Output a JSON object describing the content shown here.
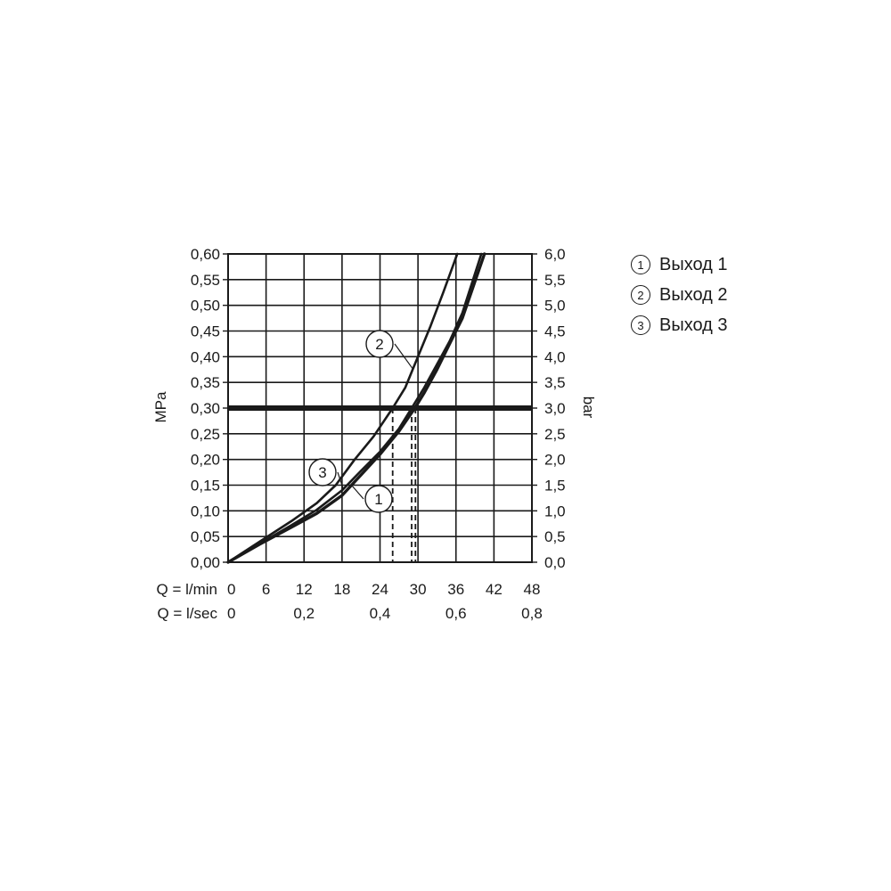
{
  "chart_data": {
    "type": "line",
    "y_left_label": "MPa",
    "y_right_label": "bar",
    "x_label_rows": [
      {
        "label": "Q = l/min",
        "ticks": [
          "0",
          "6",
          "12",
          "18",
          "24",
          "30",
          "36",
          "42",
          "48"
        ]
      },
      {
        "label": "Q = l/sec",
        "ticks": [
          "0",
          "0,2",
          "0,4",
          "0,6",
          "0,8"
        ]
      }
    ],
    "y_left_ticks": [
      "0,00",
      "0,05",
      "0,10",
      "0,15",
      "0,20",
      "0,25",
      "0,30",
      "0,35",
      "0,40",
      "0,45",
      "0,50",
      "0,55",
      "0,60"
    ],
    "y_right_ticks": [
      "0,0",
      "0,5",
      "1,0",
      "1,5",
      "2,0",
      "2,5",
      "3,0",
      "3,5",
      "4,0",
      "4,5",
      "5,0",
      "5,5",
      "6,0"
    ],
    "xlim": [
      0,
      48
    ],
    "ylim": [
      0,
      0.6
    ],
    "x_grid_step": 6,
    "y_grid_step": 0.05,
    "reference_line": {
      "y": 0.3
    },
    "series": [
      {
        "marker": "1",
        "name": "Выход 1",
        "x": [
          0,
          5,
          10,
          14,
          18,
          21,
          24,
          27,
          29.5,
          31,
          33,
          35,
          37,
          40.5
        ],
        "y": [
          0,
          0.035,
          0.068,
          0.095,
          0.13,
          0.17,
          0.21,
          0.255,
          0.3,
          0.33,
          0.375,
          0.425,
          0.475,
          0.6
        ]
      },
      {
        "marker": "2",
        "name": "Выход 2",
        "x": [
          0,
          5,
          10,
          14,
          17,
          20,
          23,
          26,
          28,
          30,
          32,
          34,
          36.2
        ],
        "y": [
          0,
          0.04,
          0.08,
          0.115,
          0.15,
          0.2,
          0.245,
          0.3,
          0.34,
          0.4,
          0.46,
          0.525,
          0.6
        ]
      },
      {
        "marker": "3",
        "name": "Выход 3",
        "x": [
          0,
          5,
          10,
          14,
          18,
          21,
          24,
          27,
          29,
          31,
          33,
          35,
          37,
          40
        ],
        "y": [
          0,
          0.036,
          0.072,
          0.102,
          0.14,
          0.178,
          0.215,
          0.26,
          0.3,
          0.34,
          0.385,
          0.43,
          0.485,
          0.6
        ]
      }
    ],
    "operating_points_x": [
      26,
      29,
      29.6
    ],
    "legend_position": "top-right"
  }
}
